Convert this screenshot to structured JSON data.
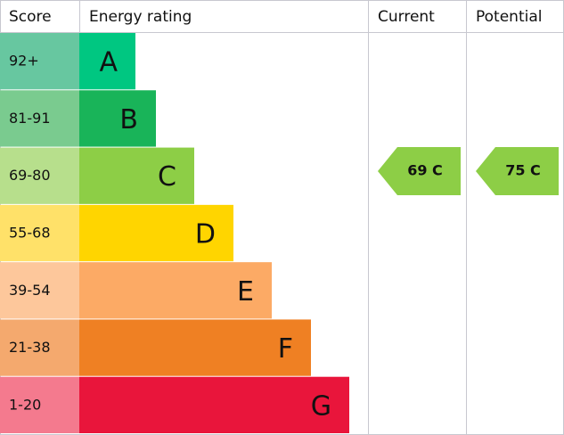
{
  "header": [
    "Score",
    "Energy rating",
    "Current",
    "Potential"
  ],
  "rows": [
    {
      "score": "92+",
      "rating": "A"
    },
    {
      "score": "81-91",
      "rating": "B"
    },
    {
      "score": "69-80",
      "rating": "C"
    },
    {
      "score": "55-68",
      "rating": "D"
    },
    {
      "score": "39-54",
      "rating": "E"
    },
    {
      "score": "21-38",
      "rating": "F"
    },
    {
      "score": "1-20",
      "rating": "G"
    }
  ],
  "current": "69 C",
  "potential": "75 C"
}
